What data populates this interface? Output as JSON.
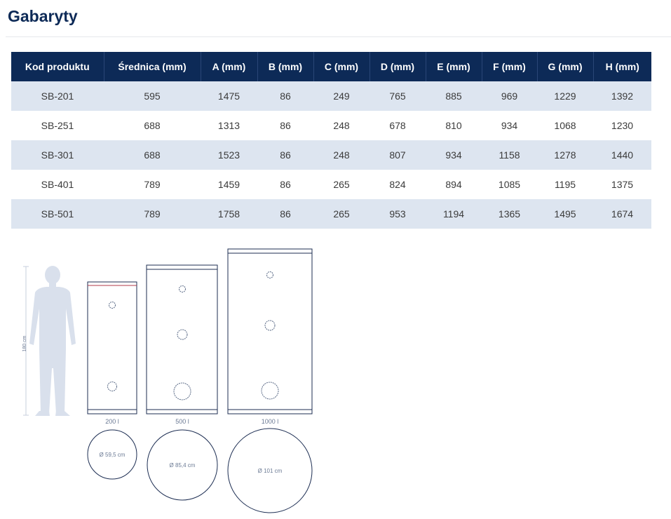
{
  "page": {
    "title": "Gabaryty"
  },
  "table": {
    "headers": [
      "Kod produktu",
      "Średnica (mm)",
      "A (mm)",
      "B (mm)",
      "C (mm)",
      "D (mm)",
      "E (mm)",
      "F (mm)",
      "G (mm)",
      "H (mm)"
    ],
    "rows": [
      [
        "SB-201",
        "595",
        "1475",
        "86",
        "249",
        "765",
        "885",
        "969",
        "1229",
        "1392"
      ],
      [
        "SB-251",
        "688",
        "1313",
        "86",
        "248",
        "678",
        "810",
        "934",
        "1068",
        "1230"
      ],
      [
        "SB-301",
        "688",
        "1523",
        "86",
        "248",
        "807",
        "934",
        "1158",
        "1278",
        "1440"
      ],
      [
        "SB-401",
        "789",
        "1459",
        "86",
        "265",
        "824",
        "894",
        "1085",
        "1195",
        "1375"
      ],
      [
        "SB-501",
        "789",
        "1758",
        "86",
        "265",
        "953",
        "1194",
        "1365",
        "1495",
        "1674"
      ]
    ]
  },
  "drawing": {
    "human_height_label": "180 cm",
    "tanks": [
      {
        "capacity_label": "200 l",
        "diameter_label": "Ø 59,5 cm"
      },
      {
        "capacity_label": "500 l",
        "diameter_label": "Ø 85,4 cm"
      },
      {
        "capacity_label": "1000 l",
        "diameter_label": "Ø 101 cm"
      }
    ]
  },
  "colors": {
    "header_bg": "#0d2a57",
    "row_stripe": "#dde5f0",
    "title": "#0d2a57",
    "silhouette": "#d9e0ec",
    "outline": "#1c2d52",
    "accent_line": "#b03a4a"
  }
}
